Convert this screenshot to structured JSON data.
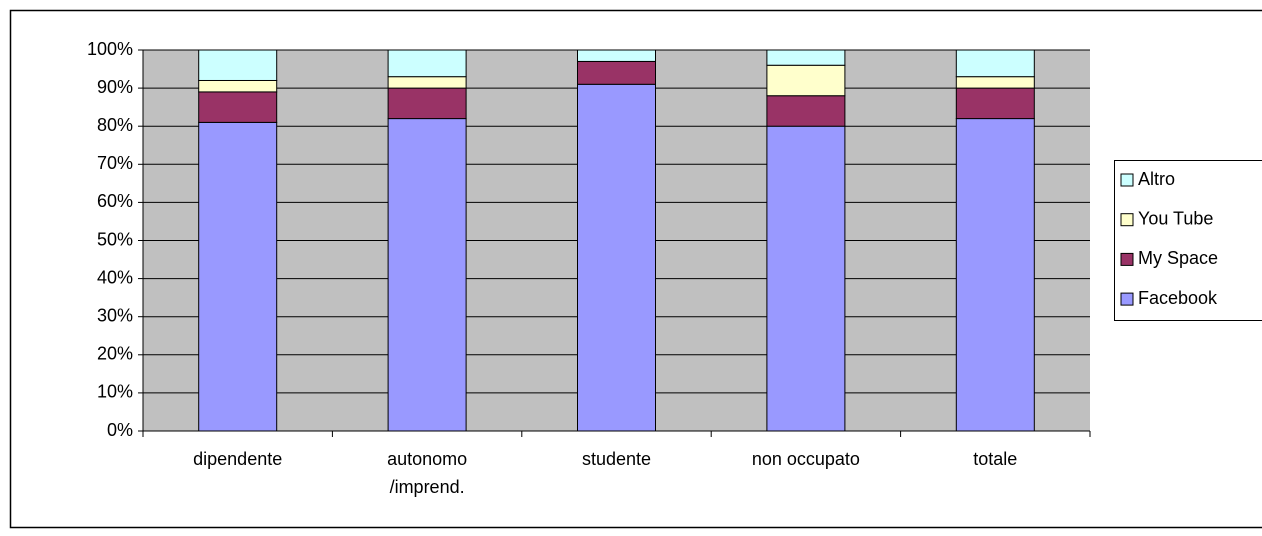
{
  "chart_data": {
    "type": "stacked_bar",
    "categories": [
      "dipendente",
      "autonomo\n/imprend.",
      "studente",
      "non occupato",
      "totale"
    ],
    "series": [
      {
        "name": "Facebook",
        "color": "#9999ff",
        "values": [
          81,
          82,
          91,
          80,
          82
        ]
      },
      {
        "name": "My Space",
        "color": "#993366",
        "values": [
          8,
          8,
          6,
          8,
          8
        ]
      },
      {
        "name": "You Tube",
        "color": "#ffffcc",
        "values": [
          3,
          3,
          0,
          8,
          3
        ]
      },
      {
        "name": "Altro",
        "color": "#ccffff",
        "values": [
          8,
          7,
          3,
          4,
          7
        ]
      }
    ],
    "ylim": [
      0,
      100
    ],
    "yticks": [
      {
        "value": 0,
        "label": "0%"
      },
      {
        "value": 10,
        "label": "10%"
      },
      {
        "value": 20,
        "label": "20%"
      },
      {
        "value": 30,
        "label": "30%"
      },
      {
        "value": 40,
        "label": "40%"
      },
      {
        "value": 50,
        "label": "50%"
      },
      {
        "value": 60,
        "label": "60%"
      },
      {
        "value": 70,
        "label": "70%"
      },
      {
        "value": 80,
        "label": "80%"
      },
      {
        "value": 90,
        "label": "90%"
      },
      {
        "value": 100,
        "label": "100%"
      }
    ],
    "grid": true,
    "legend": "right"
  }
}
